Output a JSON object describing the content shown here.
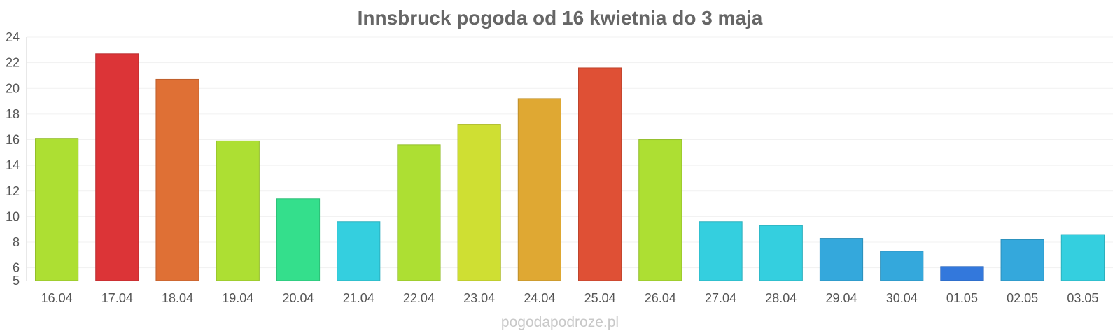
{
  "chart_data": {
    "type": "bar",
    "title": "Innsbruck pogoda od 16 kwietnia do 3 maja",
    "xlabel": "",
    "ylabel": "",
    "ylim": [
      5,
      24
    ],
    "yticks": [
      5,
      6,
      8,
      10,
      12,
      14,
      16,
      18,
      20,
      22,
      24
    ],
    "grid": true,
    "legend": "none",
    "categories": [
      "16.04",
      "17.04",
      "18.04",
      "19.04",
      "20.04",
      "21.04",
      "22.04",
      "23.04",
      "24.04",
      "25.04",
      "26.04",
      "27.04",
      "28.04",
      "29.04",
      "30.04",
      "01.05",
      "02.05",
      "03.05"
    ],
    "values": [
      16.1,
      22.7,
      20.7,
      15.9,
      11.4,
      9.6,
      15.6,
      17.2,
      19.2,
      21.6,
      16.0,
      9.6,
      9.3,
      8.3,
      7.3,
      6.1,
      8.2,
      8.6
    ],
    "colors": [
      "#addf33",
      "#dc3437",
      "#df7035",
      "#addf33",
      "#34df8c",
      "#34cfdf",
      "#addf33",
      "#cfdf33",
      "#dfa833",
      "#df5035",
      "#addf33",
      "#34cfdf",
      "#34cfdf",
      "#34a8dc",
      "#34a8dc",
      "#3378dc",
      "#34a8dc",
      "#34cfdf"
    ]
  },
  "footer": {
    "watermark": "pogodapodroze.pl"
  }
}
